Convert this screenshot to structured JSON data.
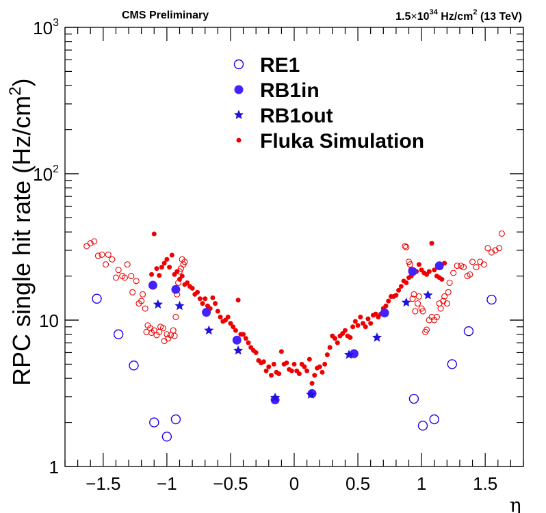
{
  "header": {
    "left": "CMS Preliminary",
    "right_prefix": "1.5",
    "right_times": "×",
    "right_base": "10",
    "right_exp": "34",
    "right_unit": " Hz/cm",
    "right_unit_exp": "2",
    "right_suffix": " (13 TeV)"
  },
  "chart_data": {
    "type": "scatter",
    "title": "",
    "xlabel": "η",
    "ylabel": "RPC single hit rate (Hz/cm",
    "ylabel_exp": "2",
    "ylabel_close": ")",
    "xlim": [
      -1.8,
      1.8
    ],
    "ylim": [
      1,
      1000
    ],
    "yscale": "log",
    "grid": false,
    "legend_position": "top-center",
    "x_ticks": [
      {
        "value": -1.5,
        "label": "−1.5"
      },
      {
        "value": -1,
        "label": "−1"
      },
      {
        "value": -0.5,
        "label": "−0.5"
      },
      {
        "value": 0,
        "label": "0"
      },
      {
        "value": 0.5,
        "label": "0.5"
      },
      {
        "value": 1,
        "label": "1"
      },
      {
        "value": 1.5,
        "label": "1.5"
      }
    ],
    "y_ticks": [
      {
        "value": 1,
        "base": "1",
        "exp": ""
      },
      {
        "value": 10,
        "base": "10",
        "exp": ""
      },
      {
        "value": 100,
        "base": "10",
        "exp": "2"
      },
      {
        "value": 1000,
        "base": "10",
        "exp": "3"
      }
    ],
    "series": [
      {
        "name": "RE1",
        "marker": "open-circle",
        "color": "#2200ee",
        "points": [
          [
            -1.55,
            14
          ],
          [
            -1.38,
            8
          ],
          [
            -1.26,
            4.9
          ],
          [
            -1.1,
            2
          ],
          [
            -1.0,
            1.6
          ],
          [
            -0.93,
            2.1
          ],
          [
            1.55,
            13.8
          ],
          [
            1.37,
            8.4
          ],
          [
            1.24,
            5.0
          ],
          [
            1.1,
            2.1
          ],
          [
            1.01,
            1.9
          ],
          [
            0.94,
            2.9
          ]
        ]
      },
      {
        "name": "RB1in",
        "marker": "filled-circle",
        "color": "#4422ff",
        "points": [
          [
            -1.11,
            17.3
          ],
          [
            -0.93,
            16.2
          ],
          [
            -0.69,
            11.3
          ],
          [
            -0.45,
            7.3
          ],
          [
            -0.15,
            2.85
          ],
          [
            0.14,
            3.15
          ],
          [
            0.47,
            5.9
          ],
          [
            0.71,
            11.2
          ],
          [
            0.93,
            21.5
          ],
          [
            1.14,
            23.5
          ]
        ]
      },
      {
        "name": "RB1out",
        "marker": "star",
        "color": "#2211dd",
        "points": [
          [
            -1.07,
            12.8
          ],
          [
            -0.9,
            12.5
          ],
          [
            -0.67,
            8.5
          ],
          [
            -0.44,
            6.2
          ],
          [
            -0.15,
            2.95
          ],
          [
            0.13,
            3.1
          ],
          [
            0.43,
            5.8
          ],
          [
            0.65,
            7.6
          ],
          [
            0.88,
            13.2
          ],
          [
            1.05,
            14.8
          ]
        ]
      },
      {
        "name": "Fluka Simulation",
        "marker": "dot",
        "color": "#ee0000",
        "points": [
          [
            -1.12,
            20.5
          ],
          [
            -1.1,
            38.8
          ],
          [
            -1.08,
            22.5
          ],
          [
            -1.06,
            20.2
          ],
          [
            -1.04,
            23
          ],
          [
            -1.02,
            24.5
          ],
          [
            -1.0,
            26
          ],
          [
            -0.98,
            23
          ],
          [
            -0.96,
            27.8
          ],
          [
            -0.94,
            20.5
          ],
          [
            -0.92,
            21.5
          ],
          [
            -0.9,
            19
          ],
          [
            -0.88,
            20
          ],
          [
            -0.86,
            17.5
          ],
          [
            -0.84,
            18
          ],
          [
            -0.82,
            17
          ],
          [
            -0.8,
            16.5
          ],
          [
            -0.78,
            15
          ],
          [
            -0.76,
            15.5
          ],
          [
            -0.74,
            14
          ],
          [
            -0.72,
            13
          ],
          [
            -0.7,
            14
          ],
          [
            -0.68,
            12.5
          ],
          [
            -0.66,
            12
          ],
          [
            -0.64,
            14.2
          ],
          [
            -0.62,
            13
          ],
          [
            -0.6,
            11.5
          ],
          [
            -0.58,
            10.5
          ],
          [
            -0.56,
            9.8
          ],
          [
            -0.54,
            10
          ],
          [
            -0.52,
            10.5
          ],
          [
            -0.5,
            9.5
          ],
          [
            -0.48,
            9
          ],
          [
            -0.46,
            8.5
          ],
          [
            -0.44,
            13.7
          ],
          [
            -0.42,
            8
          ],
          [
            -0.4,
            8
          ],
          [
            -0.38,
            7.5
          ],
          [
            -0.36,
            7
          ],
          [
            -0.34,
            6.5
          ],
          [
            -0.32,
            6.2
          ],
          [
            -0.3,
            6
          ],
          [
            -0.28,
            5.3
          ],
          [
            -0.26,
            5.1
          ],
          [
            -0.24,
            5.2
          ],
          [
            -0.22,
            4.5
          ],
          [
            -0.2,
            4.8
          ],
          [
            -0.18,
            4.2
          ],
          [
            -0.16,
            5.0
          ],
          [
            -0.14,
            4.4
          ],
          [
            -0.12,
            4.3
          ],
          [
            -0.1,
            6.1
          ],
          [
            -0.08,
            5.0
          ],
          [
            -0.06,
            5.1
          ],
          [
            -0.04,
            4.6
          ],
          [
            -0.02,
            4.5
          ],
          [
            0.0,
            5.0
          ],
          [
            0.02,
            4.5
          ],
          [
            0.04,
            4.3
          ],
          [
            0.06,
            5.0
          ],
          [
            0.08,
            4.8
          ],
          [
            0.1,
            4.5
          ],
          [
            0.12,
            5.4
          ],
          [
            0.14,
            3.7
          ],
          [
            0.16,
            4.2
          ],
          [
            0.18,
            4.7
          ],
          [
            0.2,
            4.8
          ],
          [
            0.22,
            4.4
          ],
          [
            0.24,
            5.0
          ],
          [
            0.26,
            5.8
          ],
          [
            0.28,
            6.5
          ],
          [
            0.3,
            7.8
          ],
          [
            0.32,
            7.5
          ],
          [
            0.34,
            7.0
          ],
          [
            0.36,
            7.8
          ],
          [
            0.38,
            8.1
          ],
          [
            0.4,
            8.5
          ],
          [
            0.42,
            7.8
          ],
          [
            0.44,
            7.6
          ],
          [
            0.46,
            9.0
          ],
          [
            0.48,
            9.8
          ],
          [
            0.5,
            9.2
          ],
          [
            0.52,
            10.5
          ],
          [
            0.54,
            9.5
          ],
          [
            0.56,
            9.0
          ],
          [
            0.58,
            10.2
          ],
          [
            0.6,
            9.5
          ],
          [
            0.62,
            10.8
          ],
          [
            0.64,
            11.0
          ],
          [
            0.66,
            10.5
          ],
          [
            0.68,
            11.0
          ],
          [
            0.7,
            12.0
          ],
          [
            0.72,
            12.5
          ],
          [
            0.74,
            13.5
          ],
          [
            0.76,
            14.5
          ],
          [
            0.78,
            14.5
          ],
          [
            0.8,
            14.8
          ],
          [
            0.82,
            16.0
          ],
          [
            0.84,
            17.0
          ],
          [
            0.86,
            18.5
          ],
          [
            0.88,
            18.0
          ],
          [
            0.9,
            19.5
          ],
          [
            0.92,
            20.0
          ],
          [
            0.94,
            22.0
          ],
          [
            0.96,
            21.5
          ],
          [
            0.98,
            24.0
          ],
          [
            1.0,
            22.0
          ],
          [
            1.02,
            21.0
          ],
          [
            1.04,
            20.5
          ],
          [
            1.06,
            21.5
          ],
          [
            1.08,
            33.5
          ],
          [
            1.1,
            22.0
          ],
          [
            1.12,
            20.0
          ],
          [
            1.14,
            19.5
          ],
          [
            1.16,
            19.0
          ],
          [
            1.18,
            24.5
          ]
        ]
      },
      {
        "name": "",
        "marker": "open-circle-small",
        "color": "#ee0000",
        "points": [
          [
            -1.63,
            32
          ],
          [
            -1.6,
            33.5
          ],
          [
            -1.57,
            34.5
          ],
          [
            -1.54,
            27.5
          ],
          [
            -1.51,
            28
          ],
          [
            -1.48,
            24
          ],
          [
            -1.46,
            28
          ],
          [
            -1.43,
            26
          ],
          [
            -1.4,
            19.5
          ],
          [
            -1.38,
            22
          ],
          [
            -1.35,
            20
          ],
          [
            -1.33,
            19.5
          ],
          [
            -1.31,
            24
          ],
          [
            -1.28,
            20
          ],
          [
            -1.27,
            15.5
          ],
          [
            -1.24,
            18.5
          ],
          [
            -1.22,
            13
          ],
          [
            -1.2,
            13.5
          ],
          [
            -1.19,
            15
          ],
          [
            -1.17,
            12
          ],
          [
            -1.16,
            8.3
          ],
          [
            -1.15,
            9.2
          ],
          [
            -1.13,
            8.8
          ],
          [
            -1.12,
            8.2
          ],
          [
            -1.1,
            8.5
          ],
          [
            -1.08,
            7.9
          ],
          [
            -1.06,
            8.3
          ],
          [
            -1.05,
            9.0
          ],
          [
            -1.03,
            8.8
          ],
          [
            -1.02,
            7.2
          ],
          [
            -1.0,
            8.0
          ],
          [
            -0.99,
            7.5
          ],
          [
            -0.97,
            7.9
          ],
          [
            -0.95,
            8.5
          ],
          [
            -0.94,
            7.8
          ],
          [
            -0.93,
            10.5
          ],
          [
            -0.92,
            15.0
          ],
          [
            -0.91,
            18.0
          ],
          [
            -0.9,
            21.5
          ],
          [
            -0.89,
            22.5
          ],
          [
            -0.88,
            26.0
          ],
          [
            -0.87,
            24.0
          ],
          [
            -0.86,
            25.0
          ],
          [
            1.63,
            39
          ],
          [
            1.61,
            31
          ],
          [
            1.58,
            30
          ],
          [
            1.55,
            29
          ],
          [
            1.52,
            31
          ],
          [
            1.49,
            24
          ],
          [
            1.46,
            25
          ],
          [
            1.43,
            23
          ],
          [
            1.4,
            25
          ],
          [
            1.38,
            20.5
          ],
          [
            1.36,
            20
          ],
          [
            1.33,
            23
          ],
          [
            1.31,
            23.5
          ],
          [
            1.28,
            23.5
          ],
          [
            1.25,
            21
          ],
          [
            1.22,
            18
          ],
          [
            1.21,
            15.5
          ],
          [
            1.2,
            13
          ],
          [
            1.18,
            14.5
          ],
          [
            1.17,
            13.5
          ],
          [
            1.15,
            12
          ],
          [
            1.14,
            13
          ],
          [
            1.12,
            10.5
          ],
          [
            1.1,
            10
          ],
          [
            1.08,
            10.5
          ],
          [
            1.06,
            10
          ],
          [
            1.04,
            8.6
          ],
          [
            1.03,
            8.3
          ],
          [
            1.01,
            11.5
          ],
          [
            1.0,
            12.0
          ],
          [
            0.98,
            14.5
          ],
          [
            0.97,
            13
          ],
          [
            0.95,
            11.5
          ],
          [
            0.94,
            15
          ],
          [
            0.93,
            14
          ],
          [
            0.92,
            22
          ],
          [
            0.91,
            24
          ],
          [
            0.9,
            25
          ],
          [
            0.88,
            31.5
          ],
          [
            0.87,
            32
          ]
        ]
      }
    ]
  }
}
